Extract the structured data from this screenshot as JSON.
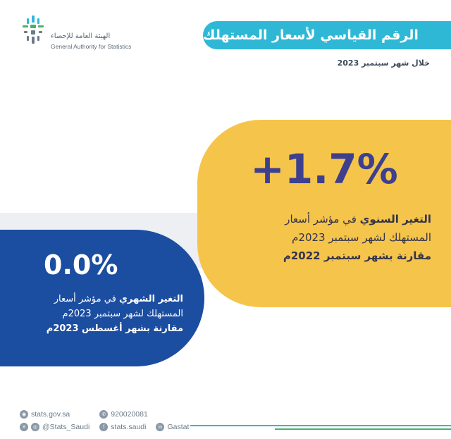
{
  "logo": {
    "arabic": "الهيئة العامة للإحصاء",
    "english": "General Authority for Statistics"
  },
  "header": {
    "title": "الرقم القياسي لأسعار المستهلك",
    "subtitle": "خلال شهر سبتمبر 2023"
  },
  "annual": {
    "value": "+1.7%",
    "label_bold": "التغير السنوي",
    "label_rest": " في مؤشر أسعار",
    "line2": "المستهلك لشهر سبتمبر 2023م",
    "line3": "مقارنة بشهر سبتمبر 2022م"
  },
  "monthly": {
    "value": "0.0%",
    "label_bold": "التغير الشهري",
    "label_rest": " في مؤشر أسعار",
    "line2": "المستهلك لشهر سبتمبر 2023م",
    "line3": "مقارنة بشهر أغسطس 2023م"
  },
  "footer": {
    "website": "stats.gov.sa",
    "phone": "920020081",
    "social": "@Stats_Saudi",
    "facebook": "stats.saudi",
    "linkedin": "Gastat"
  },
  "colors": {
    "title_bar": "#2fb8d6",
    "yellow": "#f5c44a",
    "blue": "#1b4da0",
    "value_purple": "#3d3f8f"
  }
}
